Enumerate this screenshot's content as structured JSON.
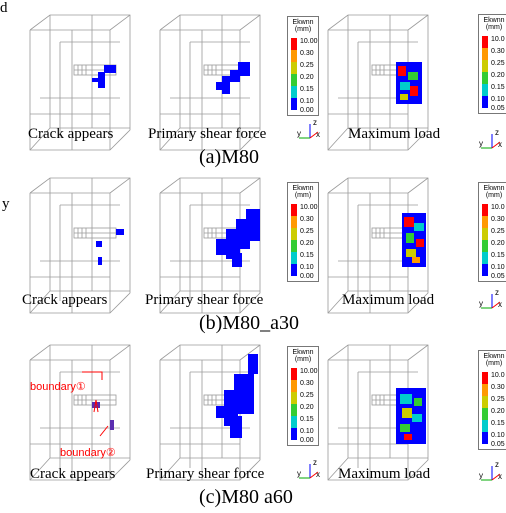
{
  "left_fragment": {
    "top": "d",
    "mid": "y"
  },
  "captions": {
    "crack": "Crack appears",
    "primary": "Primary shear force",
    "max": "Maximum load"
  },
  "rows": [
    {
      "title": "(a)M80"
    },
    {
      "title": "(b)M80_a30"
    },
    {
      "title": "(c)M80  a60"
    }
  ],
  "legend": {
    "label1": "Ekwnn",
    "label2": "(mm)",
    "ticks": [
      "10.00",
      "0.30",
      "0.25",
      "0.20",
      "0.15",
      "0.10",
      "0.00"
    ],
    "ticks_cut": [
      "10.0",
      "0.30",
      "0.25",
      "0.20",
      "0.15",
      "0.10",
      "0.05"
    ],
    "colors": [
      "#ff0000",
      "#ff9900",
      "#cccc00",
      "#33cc33",
      "#00cccc",
      "#0000ff"
    ]
  },
  "axes": {
    "z": "z",
    "y": "y",
    "x": "x"
  },
  "annotations": {
    "boundary1": "boundary①",
    "boundary2": "boundary②"
  }
}
